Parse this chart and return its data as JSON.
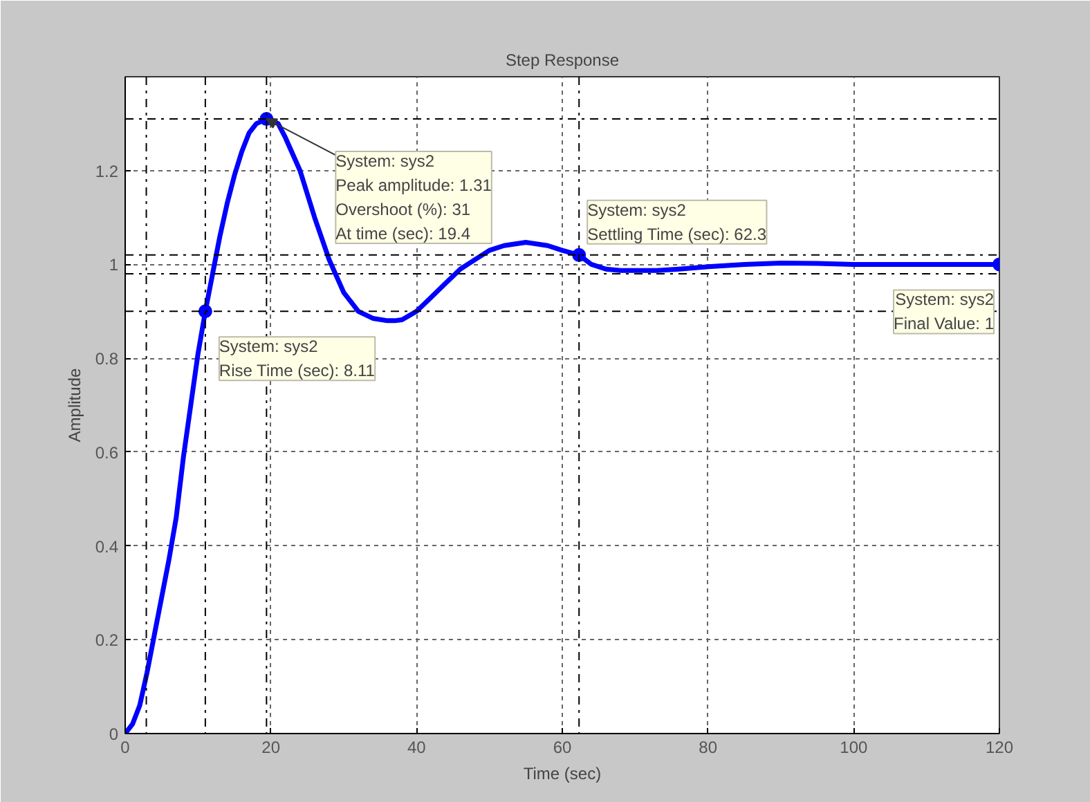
{
  "chart_data": {
    "type": "line",
    "title": "Step Response",
    "xlabel": "Time (sec)",
    "ylabel": "Amplitude",
    "xlim": [
      0,
      120
    ],
    "xticks": [
      0,
      20,
      40,
      60,
      80,
      100,
      120
    ],
    "ylim": [
      0,
      1.4
    ],
    "yticks": [
      0,
      0.2,
      0.4,
      0.6,
      0.8,
      {
        "value": 1.0,
        "label": "1"
      },
      1.2
    ],
    "grid": true,
    "line_style": "solid",
    "marker": "none",
    "series": [
      {
        "color": "#0000ff",
        "x": [
          0,
          1,
          2,
          3,
          4,
          5,
          6,
          7,
          8,
          9,
          10,
          11,
          12,
          13,
          14,
          15,
          16,
          17,
          18,
          19.4,
          21,
          22,
          24,
          26,
          28,
          30,
          32,
          34,
          36,
          37,
          38,
          40,
          42,
          44,
          46,
          48,
          50,
          52,
          55,
          58,
          60,
          62.3,
          64,
          66,
          68,
          70,
          73,
          76,
          80,
          85,
          90,
          95,
          100,
          110,
          120
        ],
        "values": [
          0,
          0.02,
          0.06,
          0.13,
          0.21,
          0.29,
          0.37,
          0.46,
          0.59,
          0.7,
          0.81,
          0.9,
          0.98,
          1.06,
          1.13,
          1.19,
          1.24,
          1.28,
          1.3,
          1.31,
          1.3,
          1.27,
          1.2,
          1.1,
          1.01,
          0.94,
          0.9,
          0.885,
          0.88,
          0.88,
          0.882,
          0.9,
          0.93,
          0.96,
          0.99,
          1.01,
          1.03,
          1.04,
          1.047,
          1.04,
          1.03,
          1.02,
          1.0,
          0.99,
          0.987,
          0.987,
          0.987,
          0.99,
          0.995,
          1.0,
          1.003,
          1.002,
          1.0,
          1.0,
          1.0
        ]
      },
      {
        "type": "scatter",
        "color": "#0000ff",
        "marker": "circle",
        "x": [
          11,
          19.4,
          62.3,
          120
        ],
        "values": [
          0.9,
          1.31,
          1.02,
          1
        ]
      }
    ],
    "ref_lines": [
      {
        "axis": "x",
        "value": 2.9,
        "line_style": "dashdot",
        "color": "#000000"
      },
      {
        "axis": "x",
        "value": 11,
        "line_style": "dashdot",
        "color": "#000000"
      },
      {
        "axis": "y",
        "value": 0.9,
        "line_style": "dashdot",
        "color": "#000000"
      },
      {
        "axis": "x",
        "value": 19.4,
        "line_style": "dashdot",
        "color": "#000000"
      },
      {
        "axis": "y",
        "value": 1.31,
        "line_style": "dashdot",
        "color": "#000000"
      },
      {
        "axis": "y",
        "value": 1.02,
        "line_style": "dashdot",
        "color": "#000000"
      },
      {
        "axis": "y",
        "value": 0.98,
        "line_style": "dashdot",
        "color": "#000000"
      },
      {
        "axis": "x",
        "value": 62.3,
        "line_style": "dashdot",
        "color": "#000000"
      }
    ],
    "annotations": [
      {
        "text": "System: sys2\nPeak amplitude: 1.31\nOvershoot (%): 31\nAt time (sec): 19.4",
        "x": 19.4,
        "y": 1.31
      },
      {
        "text": "System: sys2\nRise Time (sec): 8.11",
        "x": 11,
        "y": 0.9
      },
      {
        "text": "System: sys2\nSettling Time (sec): 62.3",
        "x": 62.3,
        "y": 1.02
      },
      {
        "text": "System: sys2\nFinal Value: 1",
        "x": 120,
        "y": 1
      }
    ]
  }
}
